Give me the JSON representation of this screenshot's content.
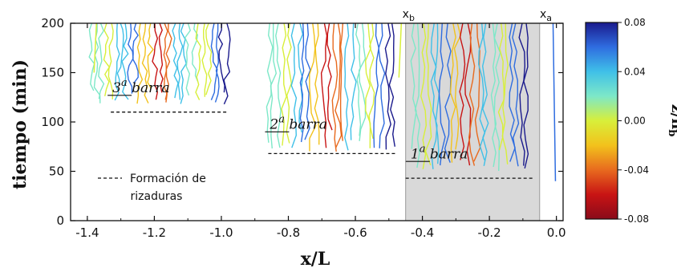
{
  "chart_data": {
    "type": "contour",
    "xlabel": "x/L",
    "ylabel": "tiempo (min)",
    "xlim": [
      -1.45,
      0.02
    ],
    "ylim": [
      0,
      200
    ],
    "xticks": [
      "-1.4",
      "-1.2",
      "-1.0",
      "-0.8",
      "-0.6",
      "-0.4",
      "-0.2",
      "0.0"
    ],
    "xtick_values": [
      -1.4,
      -1.2,
      -1.0,
      -0.8,
      -0.6,
      -0.4,
      -0.2,
      0.0
    ],
    "yticks": [
      "0",
      "50",
      "100",
      "150",
      "200"
    ],
    "ytick_values": [
      0,
      50,
      100,
      150,
      200
    ],
    "colorbar": {
      "label": "z/h",
      "label_sub": "b",
      "ticks": [
        "0.08",
        "0.04",
        "0.00",
        "-0.04",
        "-0.08"
      ],
      "range": [
        -0.08,
        0.08
      ],
      "colors_top_to_bottom": [
        "#1a1a8c",
        "#2f6de0",
        "#3fc0e8",
        "#7de8c8",
        "#d8ef3a",
        "#f2c21c",
        "#e86a1e",
        "#c81414",
        "#8a0a1a"
      ]
    },
    "shaded_region": {
      "x": [
        -0.45,
        -0.05
      ],
      "color": "#d9d9d9"
    },
    "markers": [
      {
        "label": "x",
        "sub": "b",
        "x": -0.45
      },
      {
        "label": "x",
        "sub": "a",
        "x": -0.04
      }
    ],
    "bars": [
      {
        "label": "barra",
        "num": "1",
        "sup": "a",
        "formation_time": 43,
        "x_start": -0.45,
        "x_end": -0.07,
        "label_x": -0.44,
        "label_y": 68
      },
      {
        "label": "barra",
        "num": "2",
        "sup": "a",
        "formation_time": 68,
        "x_start": -0.86,
        "x_end": -0.48,
        "label_x": -0.86,
        "label_y": 98
      },
      {
        "label": "barra",
        "num": "3",
        "sup": "a",
        "formation_time": 110,
        "x_start": -1.33,
        "x_end": -0.98,
        "label_x": -1.33,
        "label_y": 135
      }
    ],
    "legend": {
      "line_style": "dashed",
      "text_line1": "Formación de",
      "text_line2": "rizaduras",
      "position": "lower-left"
    },
    "contour_groups": [
      {
        "x_start": -1.39,
        "x_end": -0.97,
        "t_start": 118
      },
      {
        "x_start": -0.86,
        "x_end": -0.48,
        "t_start": 70
      },
      {
        "x_start": -0.43,
        "x_end": -0.08,
        "t_start": 50
      }
    ]
  }
}
